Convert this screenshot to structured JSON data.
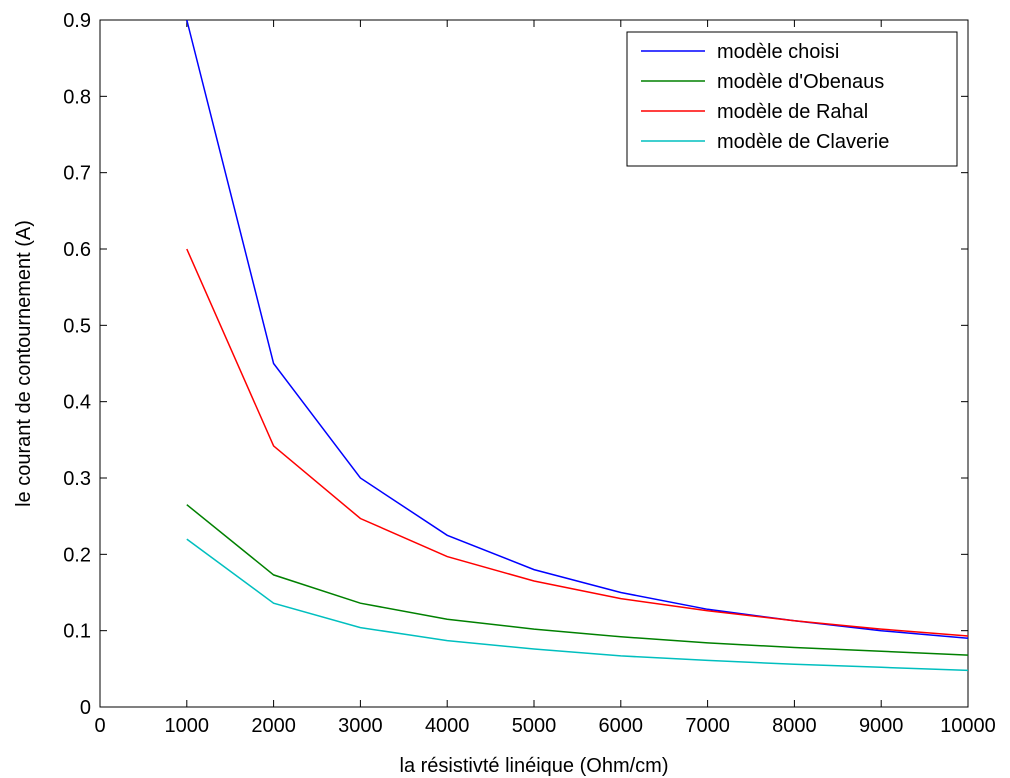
{
  "chart_data": {
    "type": "line",
    "title": "",
    "xlabel": "la résistivté linéique (Ohm/cm)",
    "ylabel": "le courant de contournement (A)",
    "xlim": [
      0,
      10000
    ],
    "ylim": [
      0,
      0.9
    ],
    "grid": false,
    "legend_position": "top-right",
    "x_ticks": [
      0,
      1000,
      2000,
      3000,
      4000,
      5000,
      6000,
      7000,
      8000,
      9000,
      10000
    ],
    "x_tick_labels": [
      "0",
      "1000",
      "2000",
      "3000",
      "4000",
      "5000",
      "6000",
      "7000",
      "8000",
      "9000",
      "10000"
    ],
    "y_ticks": [
      0,
      0.1,
      0.2,
      0.3,
      0.4,
      0.5,
      0.6,
      0.7,
      0.8,
      0.9
    ],
    "y_tick_labels": [
      "0",
      "0.1",
      "0.2",
      "0.3",
      "0.4",
      "0.5",
      "0.6",
      "0.7",
      "0.8",
      "0.9"
    ],
    "x": [
      1000,
      2000,
      3000,
      4000,
      5000,
      6000,
      7000,
      8000,
      9000,
      10000
    ],
    "series": [
      {
        "name": "modèle choisi",
        "color": "#0000ff",
        "values": [
          0.9,
          0.45,
          0.3,
          0.225,
          0.18,
          0.15,
          0.128,
          0.113,
          0.1,
          0.09
        ]
      },
      {
        "name": "modèle d'Obenaus",
        "color": "#008000",
        "values": [
          0.265,
          0.173,
          0.136,
          0.115,
          0.102,
          0.092,
          0.084,
          0.078,
          0.073,
          0.068
        ]
      },
      {
        "name": "modèle de Rahal",
        "color": "#ff0000",
        "values": [
          0.6,
          0.342,
          0.247,
          0.197,
          0.165,
          0.142,
          0.126,
          0.113,
          0.102,
          0.093
        ]
      },
      {
        "name": "modèle de Claverie",
        "color": "#00bfbf",
        "values": [
          0.22,
          0.136,
          0.104,
          0.087,
          0.076,
          0.067,
          0.061,
          0.056,
          0.052,
          0.048
        ]
      }
    ]
  }
}
